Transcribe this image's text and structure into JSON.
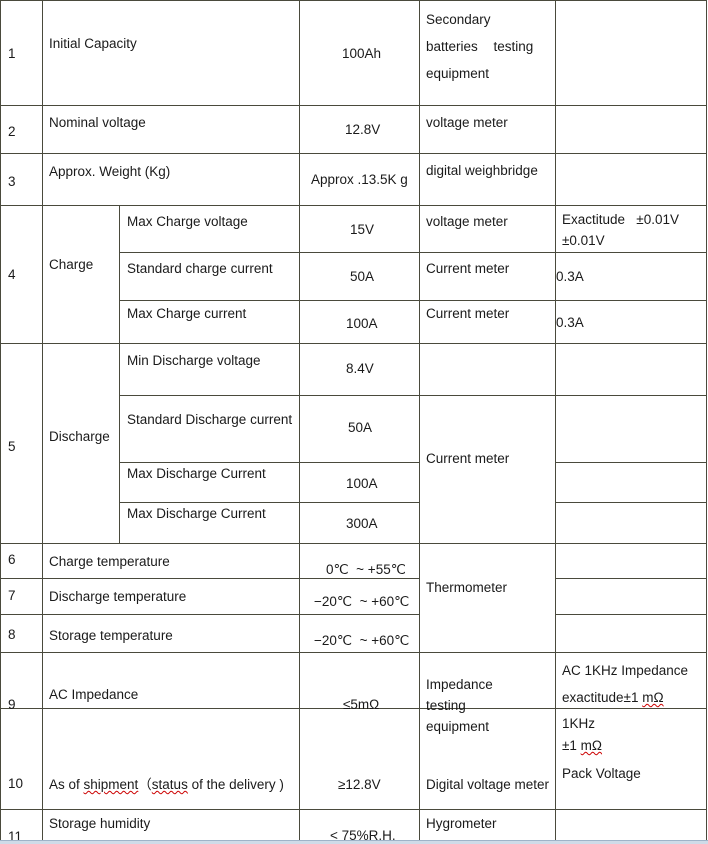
{
  "rows": [
    {
      "no": "1",
      "item": "Initial Capacity",
      "value": "100Ah",
      "method": [
        "Secondary",
        "batteries     testing",
        "equipment"
      ],
      "note": ""
    },
    {
      "no": "2",
      "item": "Nominal voltage",
      "value": "12.8V",
      "method": "voltage meter",
      "note": ""
    },
    {
      "no": "3",
      "item": "Approx. Weight (Kg)",
      "value": "Approx .13.5K g",
      "method": "digital weighbridge",
      "note": ""
    },
    {
      "no": "4",
      "item": "Charge",
      "sub": [
        {
          "item": "Max Charge voltage",
          "value": "15V",
          "method": "voltage meter",
          "note": [
            "Exactitude   ±0.01V",
            "±0.01V"
          ]
        },
        {
          "item": "Standard charge current",
          "value": "50A",
          "method": "Current meter",
          "note": "0.3A"
        },
        {
          "item": "Max Charge current",
          "value": "100A",
          "method": "Current meter",
          "note": "0.3A"
        }
      ]
    },
    {
      "no": "5",
      "item": "Discharge",
      "method": "Current meter",
      "sub": [
        {
          "item": "Min Discharge voltage",
          "value": "8.4V"
        },
        {
          "item": "Standard Discharge current",
          "value": "50A"
        },
        {
          "item": "Max Discharge Current",
          "value": "100A"
        },
        {
          "item": "Max Discharge Current",
          "value": "300A"
        }
      ]
    },
    {
      "no": "6",
      "item": "Charge temperature",
      "value": "0℃  ~ +55℃"
    },
    {
      "no": "7",
      "item": "Discharge temperature",
      "value": "−20℃  ~ +60℃"
    },
    {
      "no": "8",
      "item": "Storage temperature",
      "value": "−20℃  ~ +60℃"
    },
    {
      "no": "9",
      "item": "AC Impedance",
      "value": "≤5mΩ",
      "method": [
        "Impedance",
        "testing",
        "equipment"
      ],
      "note": [
        "AC 1KHz Impedance",
        "exactitude±1 ",
        "mΩ",
        "1KHz",
        "±1 ",
        "mΩ"
      ]
    },
    {
      "no": "10",
      "item_a": "As of ",
      "item_b": "shipment",
      "item_c": "（",
      "item_d": "status",
      "item_e": " of the delivery )",
      "value": "≥12.8V",
      "method": "Digital voltage meter",
      "note": "Pack Voltage"
    },
    {
      "no": "11",
      "item": "Storage humidity",
      "value": "< 75%R.H.",
      "method": "Hygrometer"
    }
  ],
  "temp_method": "Thermometer"
}
